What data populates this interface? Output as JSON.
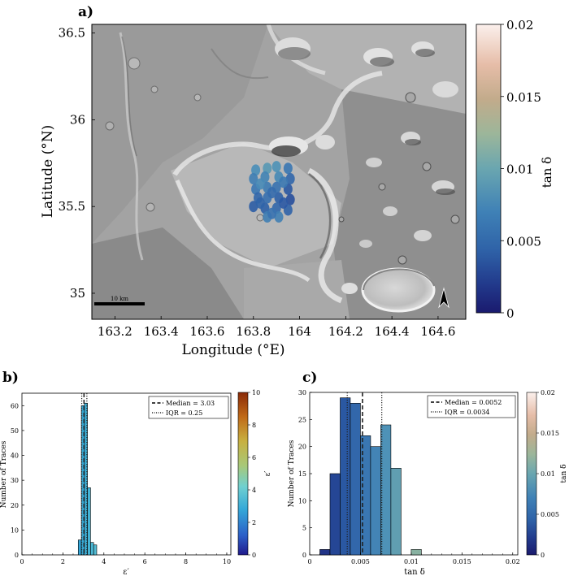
{
  "panels": {
    "a": {
      "label": "a)",
      "xlabel": "Longitude (°E)",
      "ylabel": "Latitude (°N)",
      "xticks": [
        163.2,
        163.4,
        163.6,
        163.8,
        164.0,
        164.2,
        164.4,
        164.6
      ],
      "xtick_labels": [
        "163.2",
        "163.4",
        "163.6",
        "163.8",
        "164",
        "164.2",
        "164.4",
        "164.6"
      ],
      "xlim": [
        163.1,
        164.72
      ],
      "yticks": [
        35.0,
        35.5,
        36.0,
        36.5
      ],
      "ytick_labels": [
        "35",
        "35.5",
        "36",
        "36.5"
      ],
      "ylim": [
        34.85,
        36.55
      ],
      "scale_bar": "10 km",
      "colorbar": {
        "label": "tan δ",
        "range": [
          0,
          0.02
        ],
        "ticks": [
          0,
          0.005,
          0.01,
          0.015,
          0.02
        ],
        "tick_labels": [
          "0",
          "0.005",
          "0.01",
          "0.015",
          "0.02"
        ]
      },
      "track_points": [
        {
          "lon": 163.81,
          "lat": 35.71,
          "tan": 0.0072
        },
        {
          "lon": 163.8,
          "lat": 35.66,
          "tan": 0.006
        },
        {
          "lon": 163.81,
          "lat": 35.6,
          "tan": 0.0055
        },
        {
          "lon": 163.82,
          "lat": 35.55,
          "tan": 0.0045
        },
        {
          "lon": 163.8,
          "lat": 35.5,
          "tan": 0.0038
        },
        {
          "lon": 163.86,
          "lat": 35.72,
          "tan": 0.008
        },
        {
          "lon": 163.85,
          "lat": 35.67,
          "tan": 0.0065
        },
        {
          "lon": 163.86,
          "lat": 35.61,
          "tan": 0.0058
        },
        {
          "lon": 163.86,
          "lat": 35.55,
          "tan": 0.005
        },
        {
          "lon": 163.85,
          "lat": 35.49,
          "tan": 0.004
        },
        {
          "lon": 163.86,
          "lat": 35.44,
          "tan": 0.006
        },
        {
          "lon": 163.9,
          "lat": 35.73,
          "tan": 0.0075
        },
        {
          "lon": 163.91,
          "lat": 35.67,
          "tan": 0.0068
        },
        {
          "lon": 163.9,
          "lat": 35.61,
          "tan": 0.0052
        },
        {
          "lon": 163.91,
          "lat": 35.55,
          "tan": 0.004
        },
        {
          "lon": 163.9,
          "lat": 35.49,
          "tan": 0.0045
        },
        {
          "lon": 163.91,
          "lat": 35.44,
          "tan": 0.0062
        },
        {
          "lon": 163.95,
          "lat": 35.72,
          "tan": 0.0055
        },
        {
          "lon": 163.96,
          "lat": 35.66,
          "tan": 0.0045
        },
        {
          "lon": 163.95,
          "lat": 35.6,
          "tan": 0.0035
        },
        {
          "lon": 163.96,
          "lat": 35.54,
          "tan": 0.003
        },
        {
          "lon": 163.95,
          "lat": 35.48,
          "tan": 0.0042
        },
        {
          "lon": 163.83,
          "lat": 35.63,
          "tan": 0.007
        },
        {
          "lon": 163.88,
          "lat": 35.58,
          "tan": 0.0048
        },
        {
          "lon": 163.93,
          "lat": 35.64,
          "tan": 0.0057
        },
        {
          "lon": 163.93,
          "lat": 35.52,
          "tan": 0.0036
        },
        {
          "lon": 163.83,
          "lat": 35.52,
          "tan": 0.0043
        },
        {
          "lon": 163.88,
          "lat": 35.46,
          "tan": 0.0052
        }
      ]
    },
    "b": {
      "label": "b)",
      "xlabel": "ε′",
      "ylabel": "Number of Traces",
      "legend": [
        "Median = 3.03",
        "IQR = 0.25"
      ],
      "colorbar": {
        "label": "ε′",
        "range": [
          0,
          10
        ],
        "ticks": [
          0,
          2,
          4,
          6,
          8,
          10
        ]
      }
    },
    "c": {
      "label": "c)",
      "xlabel": "tan δ",
      "ylabel": "Number of Traces",
      "legend": [
        "Median = 0.0052",
        "IQR = 0.0034"
      ],
      "colorbar": {
        "label": "tan δ",
        "range": [
          0,
          0.02
        ],
        "ticks": [
          0,
          0.005,
          0.01,
          0.015,
          0.02
        ],
        "tick_labels": [
          "0",
          "0.005",
          "0.01",
          "0.015",
          "0.02"
        ]
      }
    }
  },
  "colors": {
    "batlow": [
      "#011959",
      "#0e3f5c",
      "#175c5f",
      "#2f7360",
      "#4f845b",
      "#77914d",
      "#9a9b42",
      "#c4a043",
      "#e4a859",
      "#f6b79a",
      "#fdd2c8",
      "#faebdd"
    ],
    "tan_scale": [
      "#1a1a6e",
      "#223a8c",
      "#2b5aa4",
      "#3a76b2",
      "#4a8fb8",
      "#6ba5ae",
      "#91b59d",
      "#b6b58a",
      "#cfa98a",
      "#e3b8a4",
      "#f2d5c8",
      "#fbefea"
    ]
  },
  "chart_data": [
    {
      "type": "scatter",
      "xlabel": "Longitude (°E)",
      "ylabel": "Latitude (°N)",
      "xlim": [
        163.1,
        164.72
      ],
      "ylim": [
        34.85,
        36.55
      ],
      "color_by": "tan δ",
      "color_range": [
        0,
        0.02
      ]
    },
    {
      "type": "bar",
      "xlabel": "ε′",
      "ylabel": "Number of Traces",
      "xlim": [
        0,
        10.2
      ],
      "ylim": [
        0,
        65
      ],
      "xticks": [
        0,
        2,
        4,
        6,
        8,
        10
      ],
      "yticks": [
        0,
        10,
        20,
        30,
        40,
        50,
        60
      ],
      "bins": [
        [
          2.75,
          2.9
        ],
        [
          2.9,
          3.05
        ],
        [
          3.05,
          3.2
        ],
        [
          3.2,
          3.35
        ],
        [
          3.35,
          3.5
        ],
        [
          3.5,
          3.65
        ]
      ],
      "values": [
        6,
        60,
        61,
        27,
        5,
        4
      ],
      "median": 3.03,
      "iqr_lines": [
        2.92,
        3.17
      ],
      "legend": [
        "Median = 3.03",
        "IQR = 0.25"
      ]
    },
    {
      "type": "bar",
      "xlabel": "tan δ",
      "ylabel": "Number of Traces",
      "xlim": [
        0,
        0.0205
      ],
      "ylim": [
        0,
        30
      ],
      "xticks": [
        0,
        0.005,
        0.01,
        0.015,
        0.02
      ],
      "yticks": [
        0,
        5,
        10,
        15,
        20,
        25,
        30
      ],
      "bins": [
        [
          0.001,
          0.002
        ],
        [
          0.002,
          0.003
        ],
        [
          0.003,
          0.004
        ],
        [
          0.004,
          0.005
        ],
        [
          0.005,
          0.006
        ],
        [
          0.006,
          0.007
        ],
        [
          0.007,
          0.008
        ],
        [
          0.008,
          0.009
        ],
        [
          0.009,
          0.01
        ],
        [
          0.01,
          0.011
        ]
      ],
      "values": [
        1,
        15,
        29,
        28,
        22,
        20,
        24,
        16,
        0,
        1
      ],
      "median": 0.0052,
      "iqr_lines": [
        0.0037,
        0.0071
      ],
      "legend": [
        "Median = 0.0052",
        "IQR = 0.0034"
      ]
    }
  ]
}
